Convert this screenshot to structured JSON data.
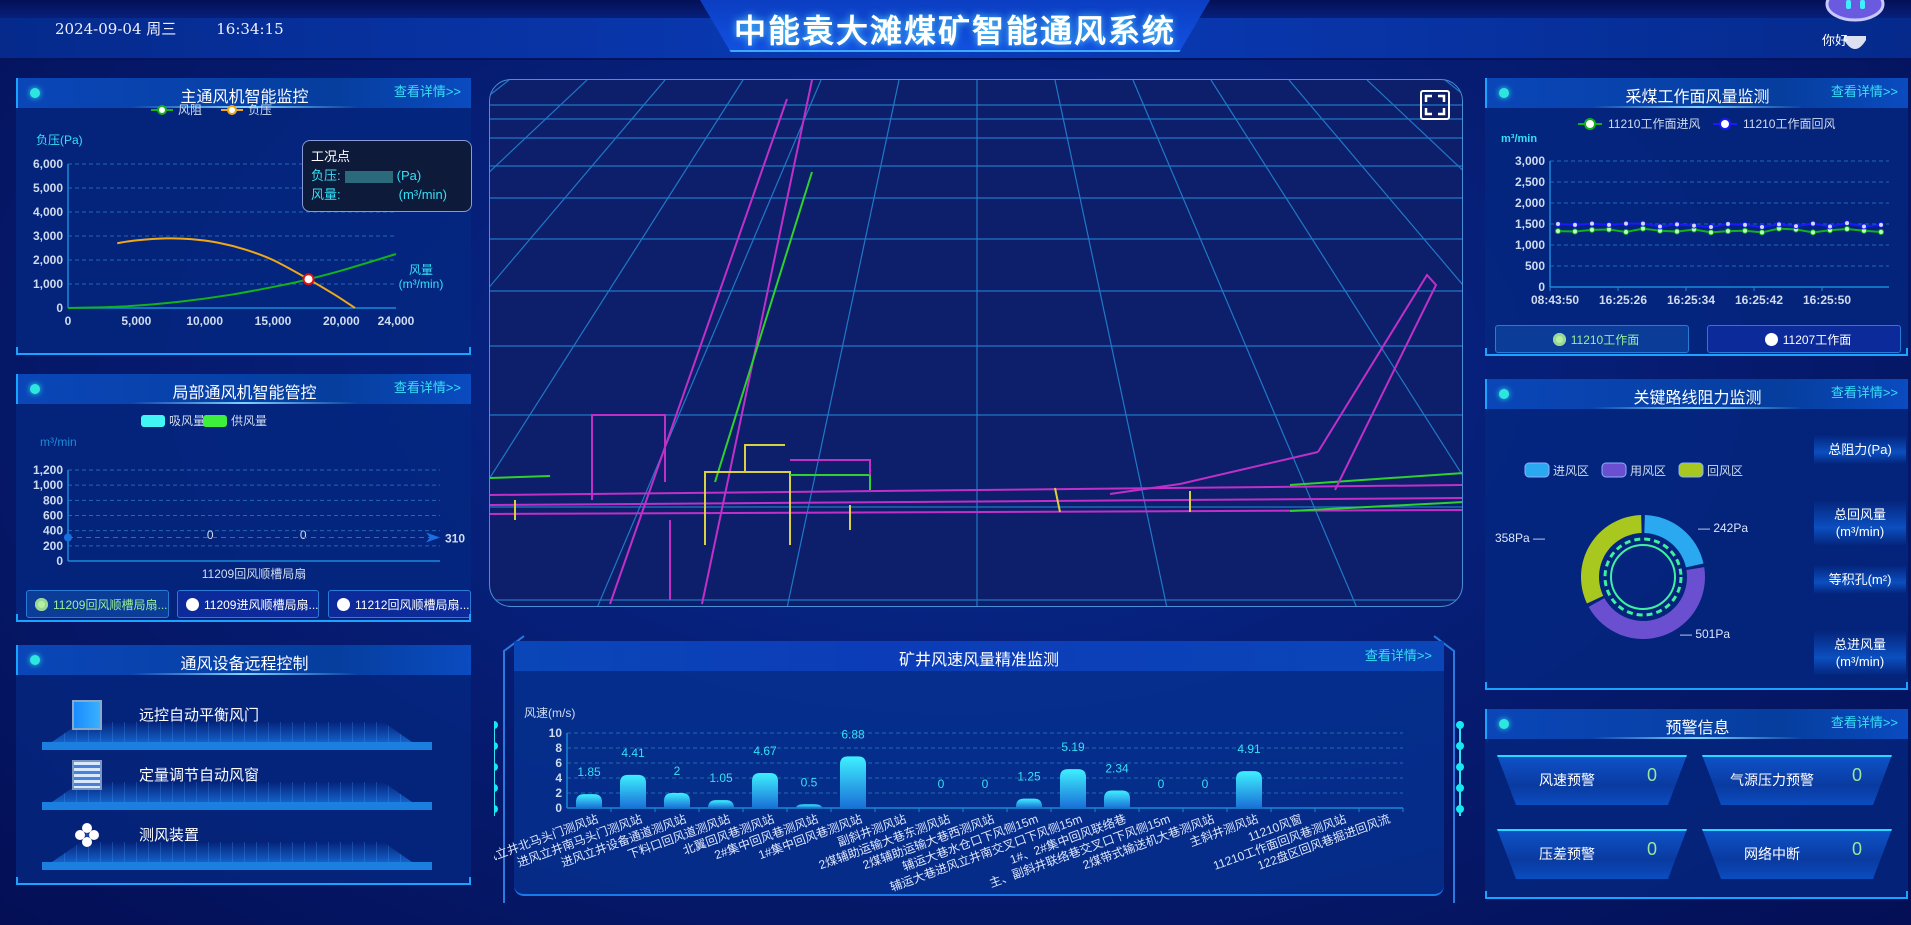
{
  "header": {
    "title": "中能袁大滩煤矿智能通风系统",
    "date": "2024-09-04 周三",
    "time": "16:34:15",
    "assistant_greeting": "你好"
  },
  "more_label": "查看详情>>",
  "colors": {
    "accent": "#35e0f5",
    "green": "#12b31a",
    "orange": "#f0a818",
    "panel": "#063e9e"
  },
  "main_fan": {
    "title": "主通风机智能监控",
    "tooltip": {
      "title": "工况点",
      "pressure_label": "负压:",
      "pressure_unit": "(Pa)",
      "flow_label": "风量:",
      "flow_unit": "(m³/min)"
    }
  },
  "local_fan": {
    "title": "局部通风机智能管控",
    "buttons": [
      {
        "label": "11209回风顺槽局扇...",
        "active": true
      },
      {
        "label": "11209进风顺槽局扇...",
        "active": false
      },
      {
        "label": "11212回风顺槽局扇...",
        "active": false
      }
    ]
  },
  "remote_control": {
    "title": "通风设备远程控制",
    "items": [
      {
        "label": "远控自动平衡风门",
        "icon": "door-icon"
      },
      {
        "label": "定量调节自动风窗",
        "icon": "window-icon"
      },
      {
        "label": "测风装置",
        "icon": "fan-icon"
      }
    ]
  },
  "map": {
    "expand_icon": "fullscreen-icon"
  },
  "wind_speed": {
    "title": "矿井风速风量精准监测"
  },
  "face_air": {
    "title": "采煤工作面风量监测",
    "buttons": [
      {
        "label": "11210工作面",
        "active": true
      },
      {
        "label": "11207工作面",
        "active": false
      }
    ]
  },
  "resistance": {
    "title": "关键路线阻力监测",
    "stats": [
      "总阻力(Pa)",
      "总回风量\n(m³/min)",
      "等积孔(m²)",
      "总进风量\n(m³/min)"
    ]
  },
  "warnings": {
    "title": "预警信息",
    "items": [
      {
        "label": "风速预警",
        "count": "0"
      },
      {
        "label": "气源压力预警",
        "count": "0"
      },
      {
        "label": "压差预警",
        "count": "0"
      },
      {
        "label": "网络中断",
        "count": "0"
      }
    ]
  },
  "chart_data": [
    {
      "type": "line",
      "id": "fan-curve",
      "ylabel": "负压(Pa)",
      "xlabel": "风量\n(m³/min)",
      "xlim": [
        0,
        24000
      ],
      "ylim": [
        0,
        6000
      ],
      "xticks": [
        "0",
        "5,000",
        "10,000",
        "15,000",
        "20,000",
        "24,000"
      ],
      "yticks": [
        "0",
        "1,000",
        "2,000",
        "3,000",
        "4,000",
        "5,000",
        "6,000"
      ],
      "grid": true,
      "legend": "top",
      "series": [
        {
          "name": "风阻",
          "color": "#12b31a",
          "x": [
            0,
            4000,
            8000,
            12000,
            16000,
            17600,
            20000,
            24000
          ],
          "y": [
            0,
            62,
            250,
            560,
            990,
            1200,
            1560,
            2250
          ]
        },
        {
          "name": "负压",
          "color": "#f0a818",
          "x": [
            3600,
            5000,
            7200,
            9000,
            11000,
            13000,
            15000,
            17600,
            19500,
            21000
          ],
          "y": [
            2700,
            2820,
            2900,
            2870,
            2720,
            2430,
            2000,
            1200,
            560,
            0
          ]
        }
      ],
      "operating_point": {
        "x": 17600,
        "y": 1200
      }
    },
    {
      "type": "bar",
      "id": "local-fan",
      "ylabel": "m³/min",
      "ylim": [
        0,
        1200
      ],
      "yticks": [
        "0",
        "200",
        "400",
        "600",
        "800",
        "1,000",
        "1,200"
      ],
      "categories": [
        "11209回风顺槽局扇"
      ],
      "series": [
        {
          "name": "吸风量",
          "color": "#42f5f5",
          "values": [
            0
          ]
        },
        {
          "name": "供风量",
          "color": "#3cf03c",
          "values": [
            0
          ]
        }
      ],
      "markline": {
        "value": 310,
        "label": "310"
      },
      "legend": "top"
    },
    {
      "type": "bar",
      "id": "wind-speed",
      "ylabel": "风速(m/s)",
      "ylim": [
        0,
        10
      ],
      "yticks": [
        "0",
        "2",
        "4",
        "6",
        "8",
        "10"
      ],
      "categories": [
        "进风立井北马头门测风站",
        "进风立井南马头门测风站",
        "进风立井设备通道测风站",
        "下料口回风道测风站",
        "北翼回风巷测风站",
        "2#集中回风巷测风站",
        "1#集中回风巷测风站",
        "副斜井测风站",
        "2煤辅助运输大巷东测风站",
        "2煤辅助运输大巷西测风站",
        "辅运大巷水仓口下风侧15m",
        "辅运大巷进风立井南交叉口下风侧15m",
        "1#、2#集中回风联络巷",
        "主、副斜井联络巷交叉口下风侧15m",
        "2煤带式输送机大巷测风站",
        "主斜井测风站",
        "11210风窗",
        "11210工作面回风巷测风站",
        "122盘区回风巷掘进回风流"
      ],
      "values": [
        1.85,
        4.41,
        2,
        1.05,
        4.67,
        0.5,
        6.88,
        null,
        0,
        0,
        1.25,
        5.19,
        2.34,
        0,
        0,
        4.91,
        null,
        null,
        null
      ]
    },
    {
      "type": "line",
      "id": "face-air",
      "ylabel": "m³/min",
      "ylim": [
        0,
        3000
      ],
      "yticks": [
        "0",
        "500",
        "1,000",
        "1,500",
        "2,000",
        "2,500",
        "3,000"
      ],
      "xticks": [
        "08:43:50",
        "16:25:26",
        "16:25:34",
        "16:25:42",
        "16:25:50"
      ],
      "legend": "top",
      "series": [
        {
          "name": "11210工作面进风",
          "color": "#12b31a",
          "values": [
            1330,
            1320,
            1360,
            1370,
            1310,
            1390,
            1340,
            1320,
            1370,
            1300,
            1330,
            1340,
            1300,
            1390,
            1370,
            1300,
            1350,
            1380,
            1340,
            1310
          ]
        },
        {
          "name": "11210工作面回风",
          "color": "#1a1aff",
          "values": [
            1500,
            1480,
            1510,
            1480,
            1510,
            1510,
            1440,
            1490,
            1460,
            1430,
            1500,
            1480,
            1430,
            1490,
            1450,
            1510,
            1440,
            1520,
            1440,
            1480
          ]
        }
      ]
    },
    {
      "type": "pie",
      "id": "resistance",
      "legend": "top",
      "slices": [
        {
          "name": "进风区",
          "value": 242,
          "label": "242Pa",
          "color": "#2aa8f0"
        },
        {
          "name": "用风区",
          "value": 501,
          "label": "501Pa",
          "color": "#6a50d0"
        },
        {
          "name": "回风区",
          "value": 358,
          "label": "358Pa",
          "color": "#a8c820"
        }
      ]
    }
  ]
}
